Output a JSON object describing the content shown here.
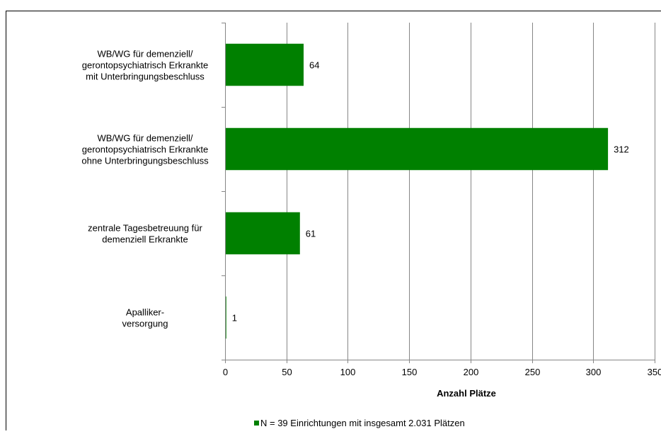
{
  "chart_data": {
    "type": "bar",
    "orientation": "horizontal",
    "categories": [
      [
        "WB/WG für demenziell/",
        "gerontopsychiatrisch Erkrankte",
        "mit Unterbringungsbeschluss"
      ],
      [
        "WB/WG für demenziell/",
        "gerontopsychiatrisch Erkrankte",
        "ohne Unterbringungsbeschluss"
      ],
      [
        "zentrale Tagesbetreuung für",
        "demenziell Erkrankte"
      ],
      [
        "Apalliker-",
        "versorgung"
      ]
    ],
    "series": [
      {
        "name": "N = 39 Einrichtungen mit insgesamt 2.031 Plätzen",
        "values": [
          64,
          312,
          61,
          1
        ],
        "color": "#008000"
      }
    ],
    "data_labels": [
      "64",
      "312",
      "61",
      "1"
    ],
    "xlabel": "Anzahl Plätze",
    "xlim": [
      0,
      350
    ],
    "xticks": [
      0,
      50,
      100,
      150,
      200,
      250,
      300,
      350
    ],
    "xtick_labels": [
      "0",
      "50",
      "100",
      "150",
      "200",
      "250",
      "300",
      "350"
    ],
    "grid": "vertical",
    "legend_position": "bottom"
  }
}
